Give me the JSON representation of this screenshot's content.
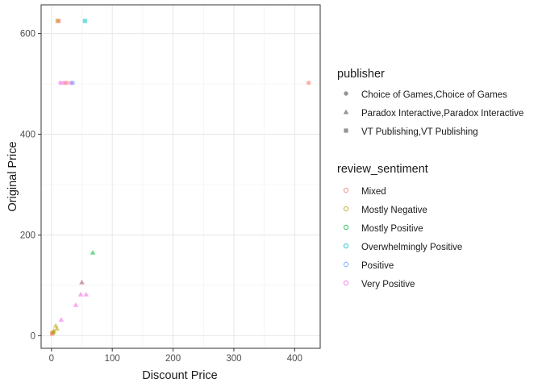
{
  "chart_data": {
    "type": "scatter",
    "title": "",
    "xlabel": "Discount Price",
    "ylabel": "Original Price",
    "xlim": [
      -17,
      442
    ],
    "ylim": [
      -25,
      657
    ],
    "x_ticks": [
      0,
      100,
      200,
      300,
      400
    ],
    "y_ticks": [
      0,
      200,
      400,
      600
    ],
    "grid": true,
    "legend_position": "right",
    "legends": [
      {
        "title": "publisher",
        "aesthetic": "shape",
        "entries": [
          {
            "label": "Choice of Games,Choice of Games",
            "shape": "circle"
          },
          {
            "label": "Paradox Interactive,Paradox Interactive",
            "shape": "triangle"
          },
          {
            "label": "VT Publishing,VT Publishing",
            "shape": "square"
          }
        ]
      },
      {
        "title": "review_sentiment",
        "aesthetic": "color",
        "entries": [
          {
            "label": "Mixed",
            "color": "#F8766D"
          },
          {
            "label": "Mostly Negative",
            "color": "#B79F00"
          },
          {
            "label": "Mostly Positive",
            "color": "#00BA38"
          },
          {
            "label": "Overwhelmingly Positive",
            "color": "#00BFC4"
          },
          {
            "label": "Positive",
            "color": "#619CFF"
          },
          {
            "label": "Very Positive",
            "color": "#F564E3"
          }
        ]
      }
    ],
    "points": [
      {
        "x": 423,
        "y": 502,
        "publisher": "Choice of Games,Choice of Games",
        "sentiment": "Mixed"
      },
      {
        "x": 15,
        "y": 502,
        "publisher": "Choice of Games,Choice of Games",
        "sentiment": "Very Positive"
      },
      {
        "x": 21,
        "y": 502,
        "publisher": "Choice of Games,Choice of Games",
        "sentiment": "Very Positive"
      },
      {
        "x": 25,
        "y": 502,
        "publisher": "Choice of Games,Choice of Games",
        "sentiment": "Mixed"
      },
      {
        "x": 32,
        "y": 502,
        "publisher": "Choice of Games,Choice of Games",
        "sentiment": "Very Positive"
      },
      {
        "x": 35,
        "y": 502,
        "publisher": "Choice of Games,Choice of Games",
        "sentiment": "Positive"
      },
      {
        "x": 10,
        "y": 625,
        "publisher": "VT Publishing,VT Publishing",
        "sentiment": "Mostly Negative"
      },
      {
        "x": 12,
        "y": 625,
        "publisher": "VT Publishing,VT Publishing",
        "sentiment": "Mixed"
      },
      {
        "x": 55,
        "y": 625,
        "publisher": "VT Publishing,VT Publishing",
        "sentiment": "Overwhelmingly Positive"
      },
      {
        "x": 68,
        "y": 165,
        "publisher": "Paradox Interactive,Paradox Interactive",
        "sentiment": "Mostly Positive"
      },
      {
        "x": 50,
        "y": 106,
        "publisher": "Paradox Interactive,Paradox Interactive",
        "sentiment": "Positive"
      },
      {
        "x": 50,
        "y": 106,
        "publisher": "Paradox Interactive,Paradox Interactive",
        "sentiment": "Mixed"
      },
      {
        "x": 48,
        "y": 82,
        "publisher": "Paradox Interactive,Paradox Interactive",
        "sentiment": "Very Positive"
      },
      {
        "x": 57,
        "y": 82,
        "publisher": "Paradox Interactive,Paradox Interactive",
        "sentiment": "Very Positive"
      },
      {
        "x": 40,
        "y": 61,
        "publisher": "Paradox Interactive,Paradox Interactive",
        "sentiment": "Very Positive"
      },
      {
        "x": 16,
        "y": 32,
        "publisher": "Paradox Interactive,Paradox Interactive",
        "sentiment": "Very Positive"
      },
      {
        "x": 7,
        "y": 20,
        "publisher": "Paradox Interactive,Paradox Interactive",
        "sentiment": "Mostly Negative"
      },
      {
        "x": 9,
        "y": 14,
        "publisher": "Paradox Interactive,Paradox Interactive",
        "sentiment": "Mostly Negative"
      },
      {
        "x": 4,
        "y": 10,
        "publisher": "Paradox Interactive,Paradox Interactive",
        "sentiment": "Mostly Negative"
      },
      {
        "x": 2,
        "y": 6,
        "publisher": "VT Publishing,VT Publishing",
        "sentiment": "Mostly Negative"
      },
      {
        "x": 1,
        "y": 4,
        "publisher": "VT Publishing,VT Publishing",
        "sentiment": "Mixed"
      },
      {
        "x": 3,
        "y": 7,
        "publisher": "Paradox Interactive,Paradox Interactive",
        "sentiment": "Mostly Negative"
      }
    ]
  }
}
